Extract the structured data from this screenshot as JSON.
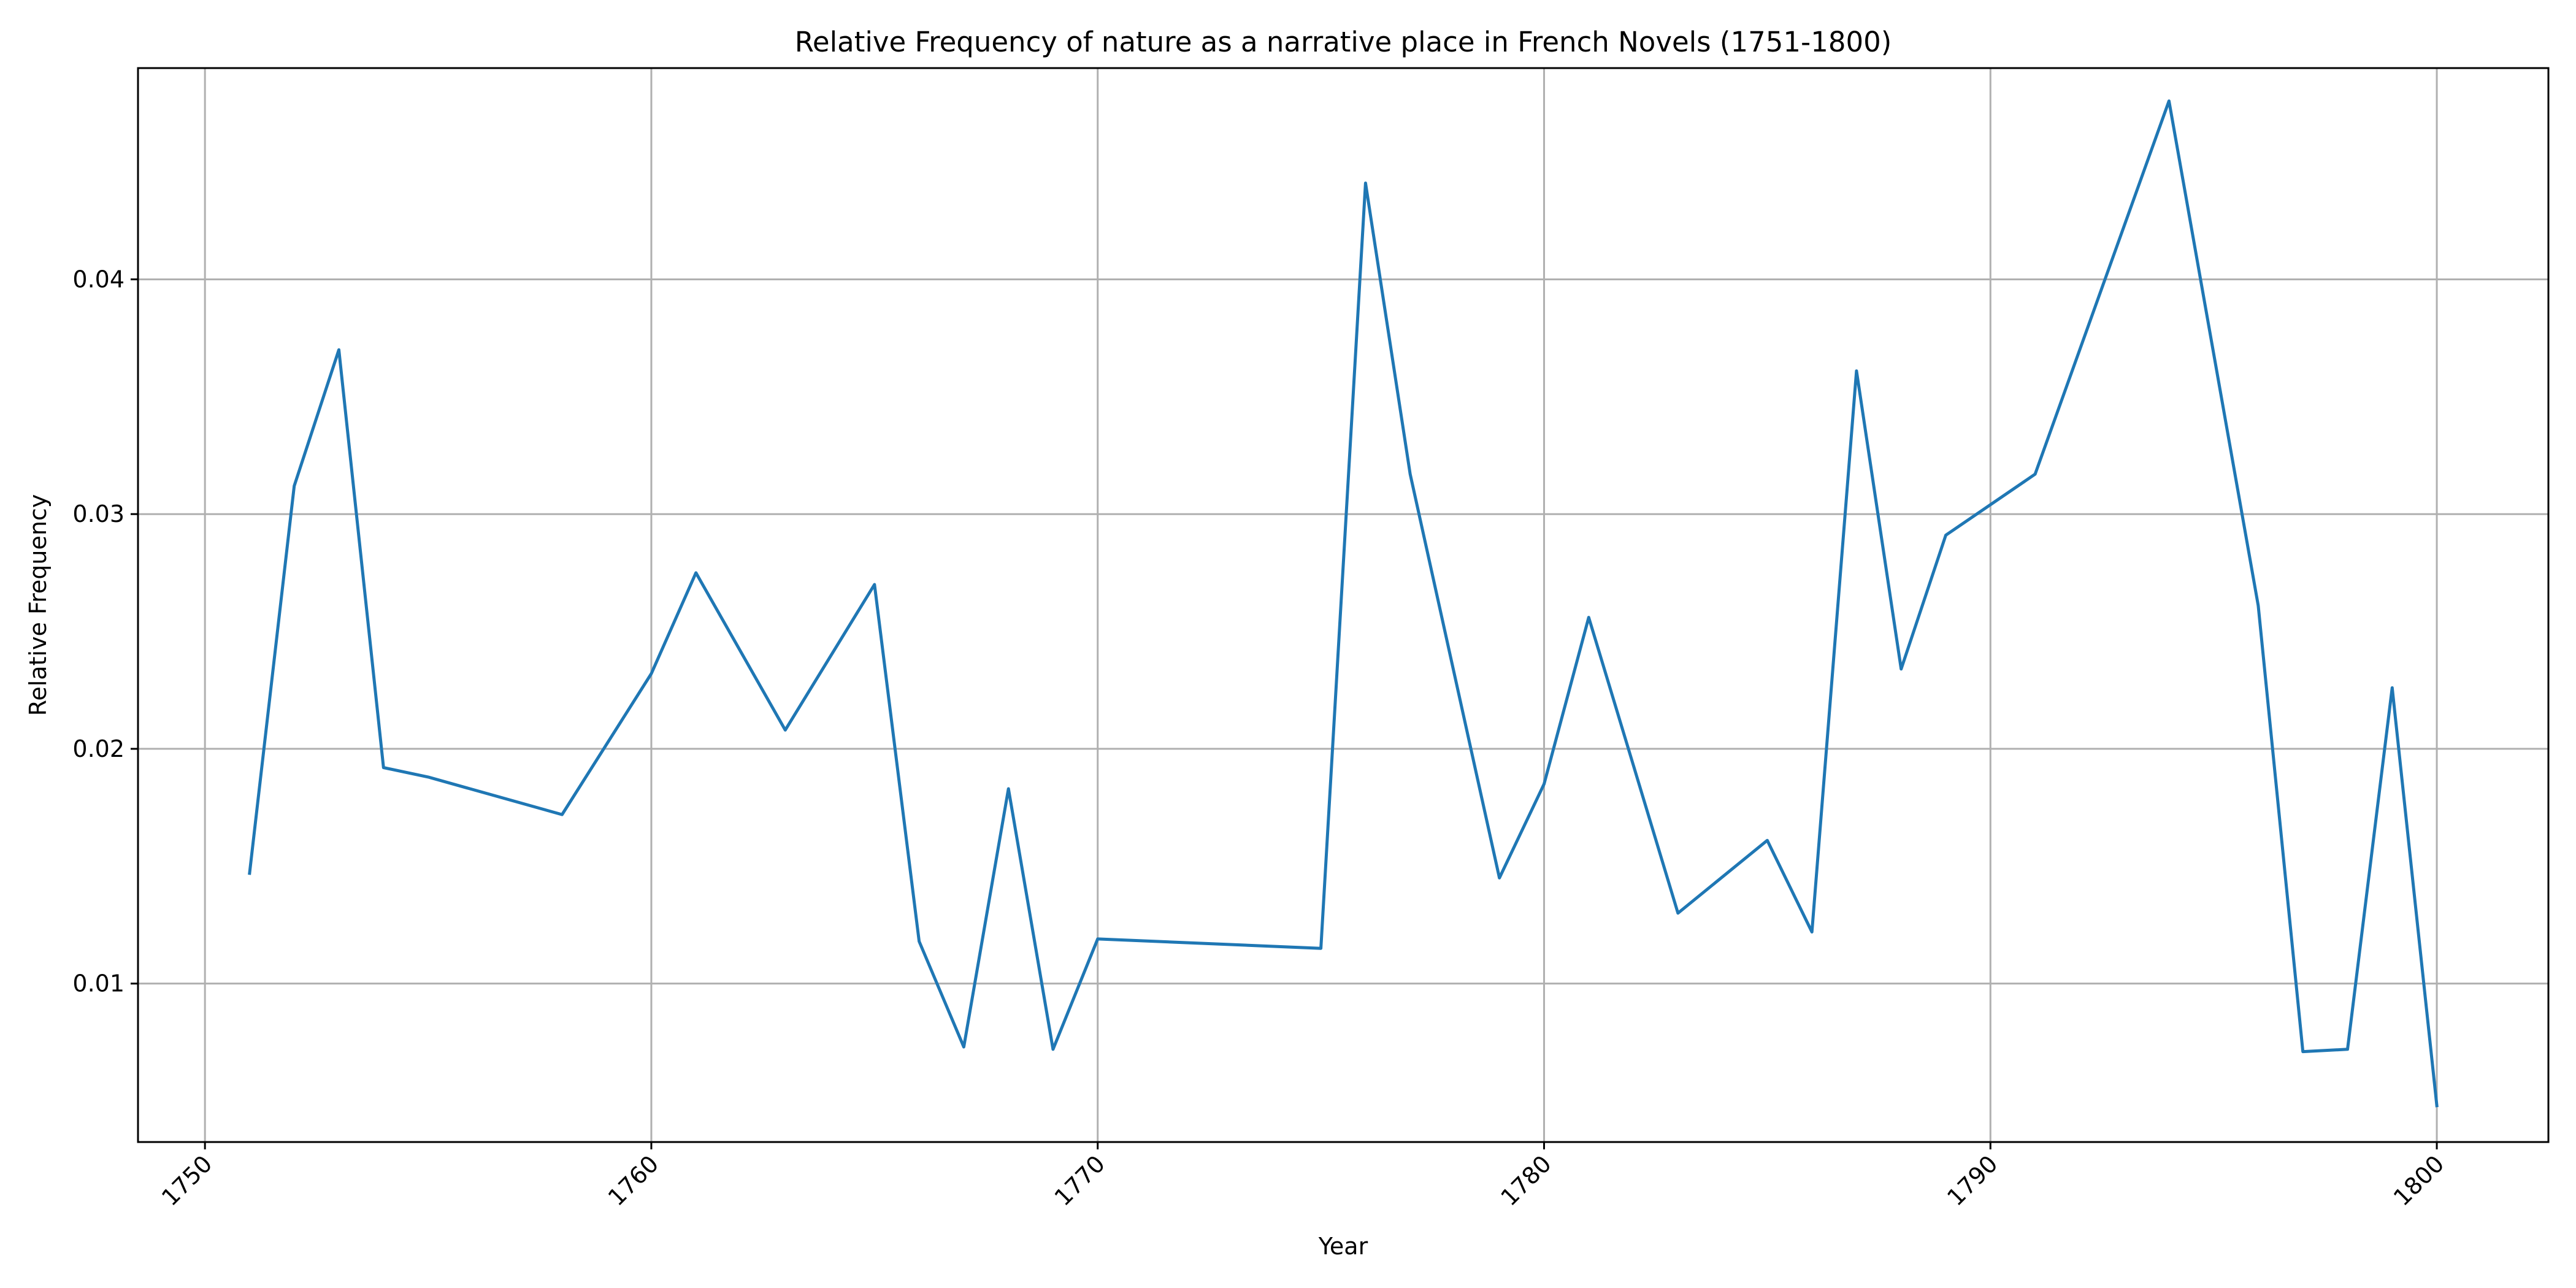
{
  "chart_data": {
    "type": "line",
    "title": "Relative Frequency of nature as a narrative place in French Novels (1751-1800)",
    "xlabel": "Year",
    "ylabel": "Relative Frequency",
    "xlim": [
      1748.5,
      1802.5
    ],
    "ylim": [
      0.00325,
      0.049
    ],
    "x_ticks": [
      1750,
      1760,
      1770,
      1780,
      1790,
      1800
    ],
    "y_ticks": [
      0.01,
      0.02,
      0.03,
      0.04
    ],
    "y_tick_labels": [
      "0.01",
      "0.02",
      "0.03",
      "0.04"
    ],
    "x_tick_rotation_deg": 45,
    "grid": true,
    "line_color": "#1f77b4",
    "series": [
      {
        "x": [
          1751,
          1752,
          1753,
          1754,
          1755,
          1758,
          1760,
          1761,
          1763,
          1765,
          1766,
          1767,
          1768,
          1769,
          1770,
          1775,
          1776,
          1777,
          1779,
          1780,
          1781,
          1782,
          1783,
          1785,
          1786,
          1787,
          1788,
          1789,
          1791,
          1794,
          1796,
          1797,
          1798,
          1799,
          1800
        ],
        "values": [
          0.0147,
          0.0312,
          0.037,
          0.0192,
          0.0188,
          0.0172,
          0.0232,
          0.0275,
          0.0208,
          0.027,
          0.0118,
          0.0073,
          0.0183,
          0.0072,
          0.0119,
          0.0115,
          0.0441,
          0.0317,
          0.0145,
          0.0185,
          0.0256,
          0.0193,
          0.013,
          0.0161,
          0.0122,
          0.0361,
          0.0234,
          0.0291,
          0.0317,
          0.0476,
          0.0261,
          0.0071,
          0.0072,
          0.0226,
          0.0048
        ]
      }
    ]
  }
}
